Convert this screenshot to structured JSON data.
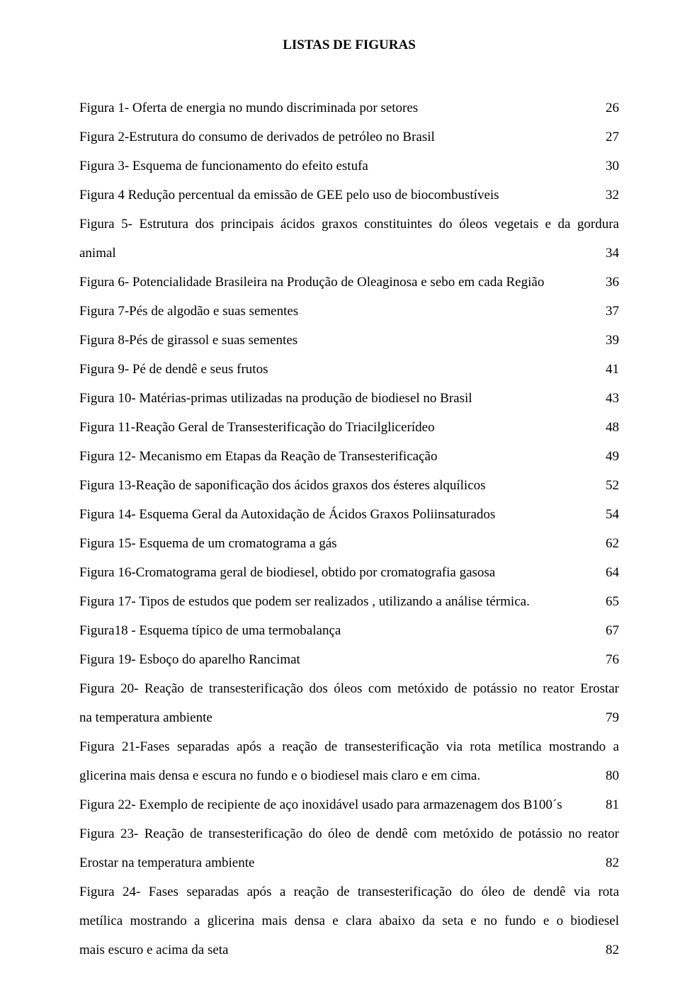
{
  "title": "LISTAS DE FIGURAS",
  "entries": [
    {
      "lines": [
        "Figura 1- Oferta de energia no mundo discriminada por setores"
      ],
      "page": "26"
    },
    {
      "lines": [
        "Figura 2-Estrutura do consumo de derivados de petróleo no Brasil"
      ],
      "page": "27"
    },
    {
      "lines": [
        "Figura 3- Esquema de funcionamento do efeito estufa"
      ],
      "page": "30"
    },
    {
      "lines": [
        "Figura 4 Redução percentual da emissão de GEE pelo uso de biocombustíveis"
      ],
      "page": "32"
    },
    {
      "lines": [
        "Figura 5- Estrutura dos principais ácidos graxos constituintes do óleos vegetais e da gordura",
        "animal"
      ],
      "page": "34"
    },
    {
      "lines": [
        "Figura 6- Potencialidade Brasileira na Produção de Oleaginosa e sebo  em cada Região"
      ],
      "page": "36"
    },
    {
      "lines": [
        "Figura 7-Pés de algodão e suas sementes"
      ],
      "page": "37"
    },
    {
      "lines": [
        "Figura 8-Pés de girassol e suas sementes"
      ],
      "page": "39"
    },
    {
      "lines": [
        "Figura 9- Pé de dendê e seus frutos"
      ],
      "page": "41"
    },
    {
      "lines": [
        "Figura 10-  Matérias-primas utilizadas na produção de biodiesel no Brasil"
      ],
      "page": "43"
    },
    {
      "lines": [
        "Figura 11-Reação Geral de Transesterificação do Triacilglicerídeo"
      ],
      "page": "48"
    },
    {
      "lines": [
        "Figura 12-  Mecanismo em Etapas da Reação de Transesterificação"
      ],
      "page": "49"
    },
    {
      "lines": [
        "Figura 13-Reação de saponificação dos ácidos graxos dos ésteres alquílicos"
      ],
      "page": "52"
    },
    {
      "lines": [
        "Figura 14- Esquema Geral da Autoxidação de Ácidos Graxos Poliinsaturados"
      ],
      "page": "54"
    },
    {
      "lines": [
        "Figura 15-  Esquema de um cromatograma a gás"
      ],
      "page": "62"
    },
    {
      "lines": [
        "Figura 16-Cromatograma geral de biodiesel, obtido por cromatografia gasosa"
      ],
      "page": "64"
    },
    {
      "lines": [
        "Figura 17- Tipos de estudos que podem ser realizados , utilizando a análise térmica."
      ],
      "page": "65"
    },
    {
      "lines": [
        "Figura18 - Esquema típico de uma termobalança"
      ],
      "page": "67"
    },
    {
      "lines": [
        "Figura 19- Esboço do aparelho Rancimat"
      ],
      "page": "76"
    },
    {
      "lines": [
        "Figura 20- Reação de transesterificação dos óleos com metóxido de potássio no reator Erostar",
        "na temperatura ambiente"
      ],
      "page": "79"
    },
    {
      "lines": [
        "Figura 21-Fases separadas após a reação de transesterificação via rota metílica mostrando a",
        "glicerina mais densa e escura no fundo e o biodiesel mais claro e em cima."
      ],
      "page": "80"
    },
    {
      "lines": [
        "Figura 22- Exemplo de recipiente de aço inoxidável usado para armazenagem dos B100´s"
      ],
      "page": "81"
    },
    {
      "lines": [
        "Figura 23-  Reação de transesterificação do óleo de dendê com metóxido de potássio no reator",
        "Erostar na temperatura ambiente"
      ],
      "page": "82"
    },
    {
      "lines": [
        "Figura 24- Fases separadas após a reação de transesterificação do óleo de dendê via rota",
        "metílica mostrando a glicerina mais densa e clara abaixo da seta e  no fundo e o biodiesel",
        "mais escuro e acima da seta"
      ],
      "page": "82"
    }
  ]
}
